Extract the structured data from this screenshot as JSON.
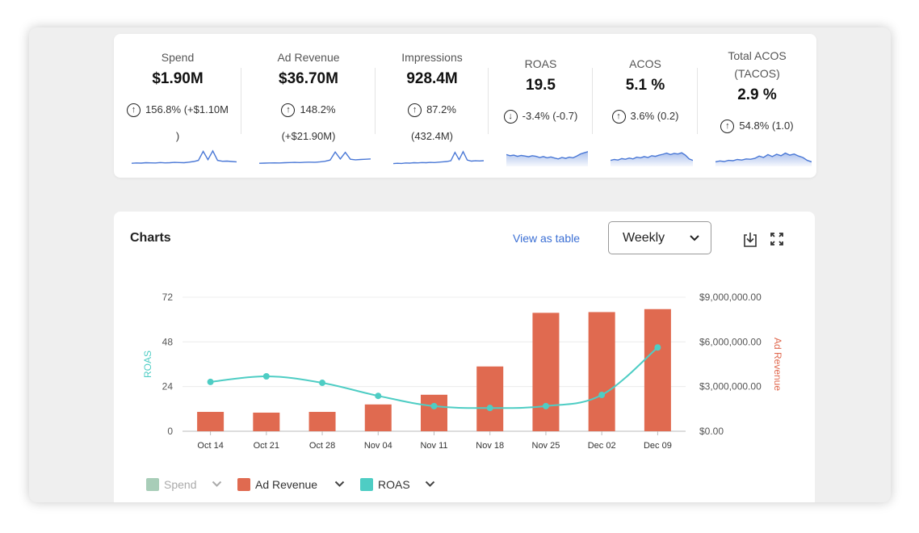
{
  "metrics": [
    {
      "label_lines": [
        "Spend"
      ],
      "value": "$1.90M",
      "arrow": "up",
      "change_lines": [
        "156.8%  (+$1.10M",
        ")"
      ],
      "spark": [
        0.1,
        0.12,
        0.11,
        0.14,
        0.13,
        0.12,
        0.15,
        0.13,
        0.14,
        0.16,
        0.15,
        0.14,
        0.18,
        0.22,
        0.3,
        0.92,
        0.35,
        0.95,
        0.3,
        0.24,
        0.25,
        0.22,
        0.2
      ]
    },
    {
      "label_lines": [
        "Ad Revenue"
      ],
      "value": "$36.70M",
      "arrow": "up",
      "change_lines": [
        "148.2%",
        "(+$21.90M)"
      ],
      "spark": [
        0.1,
        0.11,
        0.12,
        0.13,
        0.12,
        0.14,
        0.15,
        0.16,
        0.15,
        0.17,
        0.18,
        0.17,
        0.2,
        0.24,
        0.32,
        0.88,
        0.4,
        0.85,
        0.38,
        0.34,
        0.36,
        0.38,
        0.4
      ]
    },
    {
      "label_lines": [
        "Impressions"
      ],
      "value": "928.4M",
      "arrow": "up",
      "change_lines": [
        "87.2%",
        "(432.4M)"
      ],
      "spark": [
        0.08,
        0.1,
        0.09,
        0.12,
        0.11,
        0.14,
        0.13,
        0.15,
        0.14,
        0.16,
        0.15,
        0.18,
        0.2,
        0.22,
        0.28,
        0.85,
        0.35,
        0.9,
        0.32,
        0.25,
        0.27,
        0.26,
        0.28
      ]
    },
    {
      "label_lines": [
        "ROAS"
      ],
      "value": "19.5",
      "arrow": "down",
      "change_lines": [
        "-3.4%  (-0.7)"
      ],
      "spark": [
        0.7,
        0.62,
        0.66,
        0.58,
        0.64,
        0.6,
        0.55,
        0.62,
        0.58,
        0.5,
        0.56,
        0.48,
        0.54,
        0.46,
        0.4,
        0.5,
        0.44,
        0.52,
        0.48,
        0.6,
        0.74,
        0.82,
        0.9
      ]
    },
    {
      "label_lines": [
        "ACOS"
      ],
      "value": "5.1 %",
      "arrow": "up",
      "change_lines": [
        "3.6%  (0.2)"
      ],
      "spark": [
        0.3,
        0.36,
        0.32,
        0.42,
        0.38,
        0.46,
        0.4,
        0.52,
        0.48,
        0.56,
        0.5,
        0.62,
        0.58,
        0.66,
        0.72,
        0.8,
        0.7,
        0.78,
        0.74,
        0.82,
        0.66,
        0.4,
        0.3
      ]
    },
    {
      "label_lines": [
        "Total ACOS",
        "(TACOS)"
      ],
      "value": "2.9 %",
      "arrow": "up",
      "change_lines": [
        "54.8%  (1.0)"
      ],
      "spark": [
        0.2,
        0.26,
        0.22,
        0.3,
        0.28,
        0.36,
        0.32,
        0.4,
        0.38,
        0.44,
        0.6,
        0.5,
        0.7,
        0.56,
        0.72,
        0.62,
        0.8,
        0.66,
        0.74,
        0.6,
        0.5,
        0.3,
        0.2
      ]
    }
  ],
  "charts_panel": {
    "title": "Charts",
    "view_table_label": "View as table",
    "frequency": "Weekly"
  },
  "colors": {
    "ad_revenue": "#E06A50",
    "roas": "#4ECDC4",
    "spend": "#A8CDB8",
    "spark_line": "#4a78d6",
    "link": "#3b6fd4"
  },
  "chart_data": {
    "type": "bar",
    "categories": [
      "Oct 14",
      "Oct 21",
      "Oct 28",
      "Nov 04",
      "Nov 11",
      "Nov 18",
      "Nov 25",
      "Dec 02",
      "Dec 09"
    ],
    "series": [
      {
        "name": "Ad Revenue",
        "type": "bar",
        "axis": "right",
        "values": [
          1300000,
          1250000,
          1300000,
          1800000,
          2450000,
          4350000,
          7950000,
          8000000,
          8200000
        ]
      },
      {
        "name": "ROAS",
        "type": "line",
        "axis": "left",
        "values": [
          26.5,
          29.5,
          26,
          19,
          13.5,
          12.5,
          13.5,
          19.5,
          45
        ]
      }
    ],
    "left_axis": {
      "label": "ROAS",
      "ticks": [
        "0",
        "24",
        "48",
        "72"
      ],
      "range": [
        0,
        72
      ]
    },
    "right_axis": {
      "label": "Ad Revenue",
      "ticks": [
        "$0.00",
        "$3,000,000.00",
        "$6,000,000.00",
        "$9,000,000.00"
      ],
      "range": [
        0,
        9000000
      ]
    },
    "grid": true,
    "legend": {
      "position": "bottom-left",
      "items": [
        {
          "name": "Spend",
          "enabled": false
        },
        {
          "name": "Ad Revenue",
          "enabled": true
        },
        {
          "name": "ROAS",
          "enabled": true
        }
      ]
    }
  }
}
